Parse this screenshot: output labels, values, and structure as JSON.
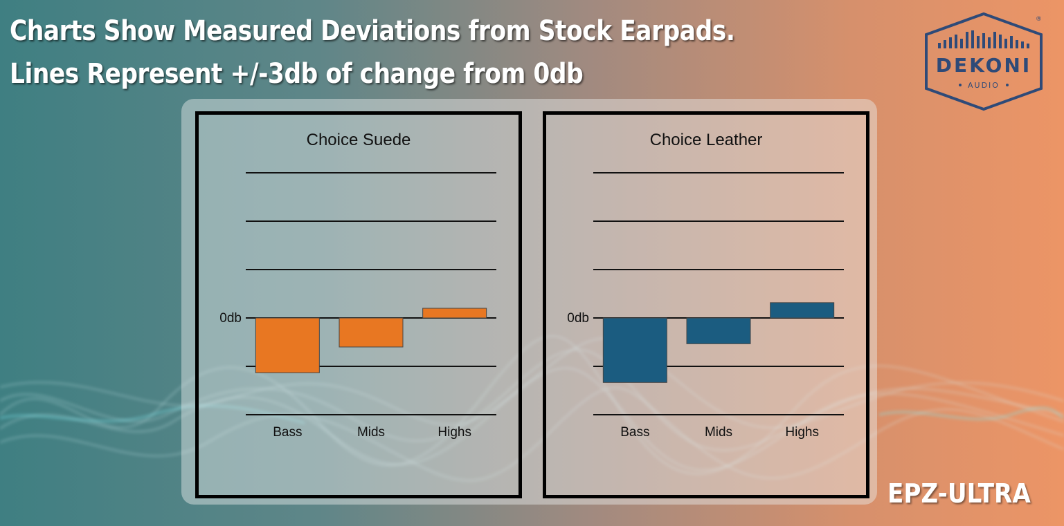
{
  "headline": {
    "line1": "Charts Show Measured Deviations from Stock Earpads.",
    "line2": "Lines Represent +/-3db of change from 0db"
  },
  "logo": {
    "brand": "DEKONI",
    "sub": "AUDIO",
    "registered": "®"
  },
  "product_label": "EPZ-ULTRA",
  "colors": {
    "suede_bar": "#E87722",
    "leather_bar": "#1B5C80",
    "logo": "#2E4A78"
  },
  "chart_data": [
    {
      "type": "bar",
      "title": "Choice Suede",
      "categories": [
        "Bass",
        "Mids",
        "Highs"
      ],
      "values": [
        -3.4,
        -1.8,
        0.6
      ],
      "zero_label": "0db",
      "ylim": [
        -6,
        9
      ],
      "grid_step": 3,
      "color": "#E87722"
    },
    {
      "type": "bar",
      "title": "Choice Leather",
      "categories": [
        "Bass",
        "Mids",
        "Highs"
      ],
      "values": [
        -4.0,
        -1.6,
        0.95
      ],
      "zero_label": "0db",
      "ylim": [
        -6,
        9
      ],
      "grid_step": 3,
      "color": "#1B5C80"
    }
  ]
}
